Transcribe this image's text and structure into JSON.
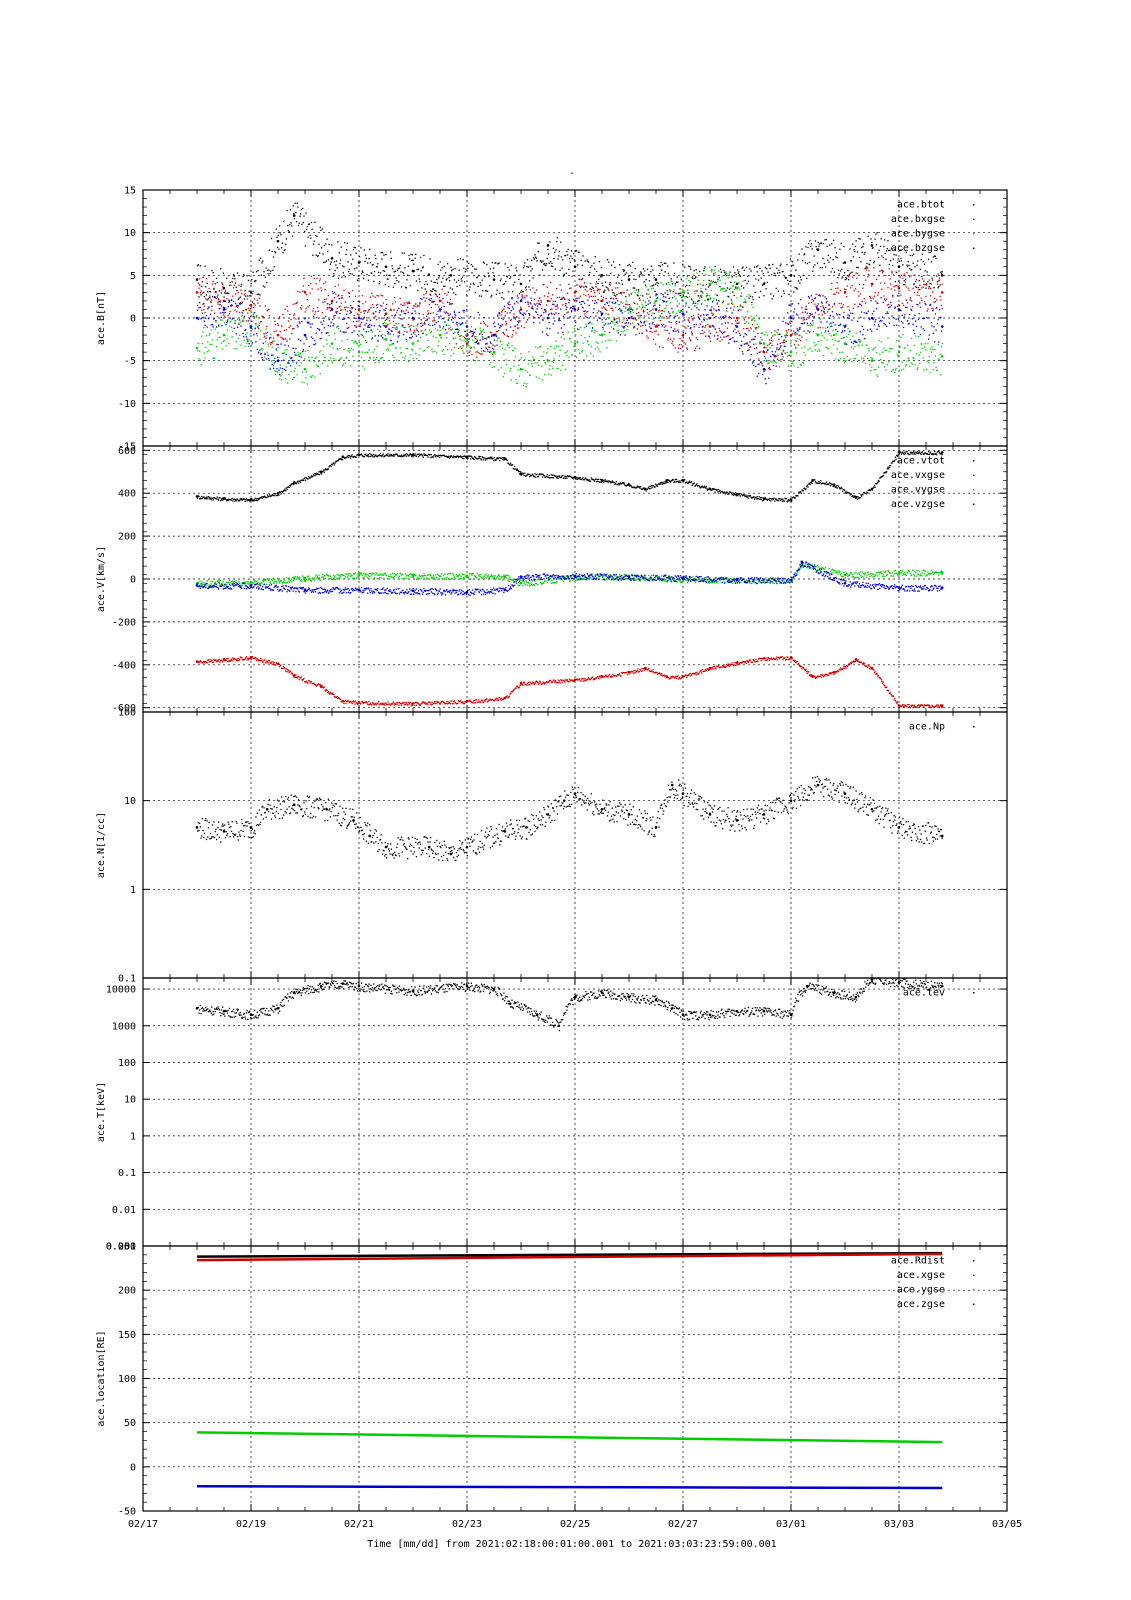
{
  "figure": {
    "title": "-"
  },
  "colors": {
    "black": "#000000",
    "red": "#cc0000",
    "green": "#00cc00",
    "blue": "#0000cc"
  },
  "footer": {
    "xlabel": "Time [mm/dd]  from 2021:02:18:00:01:00.001  to  2021:03:03:23:59:00.001",
    "xticks": [
      "02/17",
      "02/19",
      "02/21",
      "02/23",
      "02/25",
      "02/27",
      "03/01",
      "03/03",
      "03/05"
    ]
  },
  "chart_data": [
    {
      "type": "scatter",
      "ylabel": "ace.B[nT]",
      "ylim": [
        -15,
        15
      ],
      "yscale": "linear",
      "yticks": [
        "15",
        "10",
        "5",
        "0",
        "-5",
        "-10",
        "-15"
      ],
      "grid": true,
      "legend_position": "top-right",
      "x_unit": "days since 02/17",
      "series": [
        {
          "name": "ace.btot",
          "color": "#000000",
          "x": [
            1.0,
            1.5,
            2.0,
            2.5,
            2.8,
            3.5,
            4.0,
            4.5,
            5.0,
            5.7,
            6.5,
            7.0,
            7.5,
            8.0,
            8.5,
            9.0,
            9.5,
            10.5,
            11.0,
            11.5,
            12.0,
            12.5,
            13.0,
            13.5,
            14.0,
            14.8
          ],
          "y": [
            4.5,
            3.5,
            3.0,
            9.0,
            12.0,
            7.0,
            6.5,
            6.0,
            5.5,
            5.0,
            4.5,
            4.0,
            8.5,
            6.0,
            5.0,
            4.5,
            4.5,
            4.0,
            4.0,
            4.0,
            5.0,
            8.0,
            6.5,
            8.5,
            6.0,
            5.0
          ]
        },
        {
          "name": "ace.bxgse",
          "color": "#cc0000",
          "x": [
            1.0,
            1.5,
            2.0,
            2.5,
            3.0,
            3.5,
            4.0,
            4.5,
            5.0,
            5.5,
            6.0,
            6.5,
            7.0,
            7.5,
            8.0,
            8.5,
            9.0,
            9.5,
            10.0,
            10.5,
            11.0,
            11.5,
            12.0,
            12.5,
            13.0,
            13.5,
            14.0,
            14.8
          ],
          "y": [
            3.0,
            2.0,
            1.5,
            -2.0,
            3.0,
            2.0,
            1.0,
            0.5,
            0.0,
            2.0,
            -3.0,
            -2.0,
            1.0,
            2.0,
            3.0,
            2.0,
            1.0,
            -1.0,
            -2.0,
            -1.0,
            0.0,
            -4.0,
            -2.0,
            1.0,
            3.0,
            4.0,
            3.5,
            3.0
          ]
        },
        {
          "name": "ace.bygse",
          "color": "#00cc00",
          "x": [
            1.0,
            1.5,
            2.0,
            2.5,
            3.0,
            3.5,
            4.0,
            4.5,
            5.0,
            5.5,
            6.0,
            6.5,
            7.0,
            7.5,
            8.0,
            8.5,
            9.0,
            9.5,
            10.0,
            10.5,
            11.0,
            11.5,
            12.0,
            12.5,
            13.0,
            13.5,
            14.0,
            14.8
          ],
          "y": [
            -3.5,
            -2.0,
            -1.0,
            -5.0,
            -6.0,
            -3.0,
            -4.0,
            -2.5,
            -3.0,
            -2.0,
            -2.5,
            -4.0,
            -6.0,
            -5.0,
            -3.0,
            -2.0,
            1.0,
            2.0,
            3.0,
            4.0,
            3.5,
            -3.0,
            -4.0,
            -2.0,
            -3.0,
            -5.0,
            -4.0,
            -4.5
          ]
        },
        {
          "name": "ace.bzgse",
          "color": "#0000cc",
          "x": [
            1.0,
            1.5,
            2.0,
            2.5,
            3.0,
            3.5,
            4.0,
            4.5,
            5.0,
            5.5,
            6.0,
            6.5,
            7.0,
            7.5,
            8.0,
            8.5,
            9.0,
            9.5,
            10.0,
            10.5,
            11.0,
            11.5,
            12.0,
            12.5,
            13.0,
            13.5,
            14.0,
            14.8
          ],
          "y": [
            0.0,
            1.0,
            -1.0,
            -5.0,
            -2.0,
            1.0,
            0.0,
            -1.0,
            0.0,
            1.0,
            -1.0,
            -2.0,
            2.0,
            0.0,
            1.0,
            0.5,
            0.0,
            1.0,
            0.5,
            0.0,
            -1.0,
            -6.0,
            0.0,
            1.0,
            -1.0,
            0.0,
            1.0,
            -1.0
          ]
        }
      ]
    },
    {
      "type": "scatter",
      "ylabel": "ace.V[km/s]",
      "ylim": [
        -620,
        620
      ],
      "yscale": "linear",
      "yticks": [
        "600",
        "400",
        "200",
        "0",
        "-200",
        "-400",
        "-600"
      ],
      "grid": true,
      "legend_position": "top-right",
      "x_unit": "days since 02/17",
      "series": [
        {
          "name": "ace.vtot",
          "color": "#000000",
          "x": [
            1.0,
            1.5,
            2.0,
            2.5,
            2.8,
            3.3,
            3.7,
            4.0,
            5.0,
            6.0,
            6.7,
            7.0,
            8.0,
            8.5,
            9.0,
            9.3,
            9.7,
            10.0,
            10.5,
            11.0,
            11.5,
            12.0,
            12.4,
            12.8,
            13.2,
            13.5,
            14.0,
            14.8
          ],
          "y": [
            385,
            375,
            370,
            400,
            450,
            500,
            570,
            580,
            580,
            570,
            560,
            490,
            475,
            460,
            440,
            420,
            460,
            460,
            420,
            395,
            375,
            370,
            460,
            440,
            380,
            420,
            590,
            590
          ]
        },
        {
          "name": "ace.vxgse",
          "color": "#cc0000",
          "x": [
            1.0,
            1.5,
            2.0,
            2.5,
            2.8,
            3.3,
            3.7,
            4.0,
            5.0,
            6.0,
            6.7,
            7.0,
            8.0,
            8.5,
            9.0,
            9.3,
            9.7,
            10.0,
            10.5,
            11.0,
            11.5,
            12.0,
            12.4,
            12.8,
            13.2,
            13.5,
            14.0,
            14.8
          ],
          "y": [
            -385,
            -375,
            -365,
            -395,
            -450,
            -500,
            -570,
            -575,
            -580,
            -570,
            -555,
            -485,
            -470,
            -455,
            -435,
            -415,
            -455,
            -455,
            -415,
            -390,
            -370,
            -365,
            -455,
            -435,
            -375,
            -415,
            -590,
            -590
          ]
        },
        {
          "name": "ace.vygse",
          "color": "#00cc00",
          "x": [
            1.0,
            2.0,
            3.0,
            4.0,
            5.0,
            6.0,
            6.7,
            7.0,
            8.0,
            9.0,
            10.0,
            11.0,
            12.0,
            12.2,
            13.0,
            14.0,
            14.8
          ],
          "y": [
            -20,
            -15,
            5,
            20,
            15,
            15,
            10,
            -20,
            10,
            10,
            0,
            -5,
            -5,
            70,
            20,
            30,
            30
          ]
        },
        {
          "name": "ace.vzgse",
          "color": "#0000cc",
          "x": [
            1.0,
            2.0,
            3.0,
            4.0,
            5.0,
            6.0,
            6.7,
            7.0,
            8.0,
            9.0,
            10.0,
            11.0,
            12.0,
            12.2,
            13.0,
            14.0,
            14.8
          ],
          "y": [
            -30,
            -30,
            -50,
            -50,
            -55,
            -60,
            -50,
            10,
            15,
            10,
            5,
            -5,
            -5,
            80,
            -20,
            -40,
            -40
          ]
        }
      ]
    },
    {
      "type": "scatter",
      "ylabel": "ace.N[1/cc]",
      "ylim": [
        0.1,
        100
      ],
      "yscale": "log",
      "yticks": [
        "100",
        "10",
        "1",
        "0.1"
      ],
      "grid": true,
      "legend_position": "top-right",
      "x_unit": "days since 02/17",
      "series": [
        {
          "name": "ace.Np",
          "color": "#000000",
          "x": [
            1.0,
            1.5,
            2.0,
            2.3,
            2.8,
            3.4,
            3.9,
            4.2,
            4.5,
            5.3,
            5.7,
            6.0,
            6.7,
            7.1,
            7.5,
            7.8,
            8.0,
            8.5,
            9.0,
            9.5,
            9.8,
            10.0,
            10.5,
            11.0,
            11.5,
            12.0,
            12.5,
            13.0,
            13.5,
            14.0,
            14.8
          ],
          "y": [
            5,
            4.5,
            5,
            8,
            9,
            8,
            6,
            4,
            3,
            3,
            2.5,
            3,
            4.5,
            5,
            7,
            10,
            12,
            8,
            7,
            5,
            15,
            12,
            7,
            6,
            7,
            10,
            15,
            12,
            8,
            5,
            4
          ]
        }
      ]
    },
    {
      "type": "scatter",
      "ylabel": "ace.T[keV]",
      "ylim": [
        0.001,
        20000
      ],
      "yscale": "log",
      "yticks": [
        "10000",
        "1000",
        "100",
        "10",
        "1",
        "0.1",
        "0.01",
        "0.001"
      ],
      "grid": true,
      "legend_position": "top-right",
      "x_unit": "days since 02/17",
      "series": [
        {
          "name": "ace.tev",
          "color": "#000000",
          "x": [
            1.0,
            1.5,
            2.0,
            2.5,
            2.8,
            3.3,
            3.7,
            4.0,
            5.0,
            6.0,
            6.5,
            6.8,
            7.3,
            7.7,
            8.0,
            8.5,
            9.0,
            9.5,
            9.8,
            10.0,
            10.5,
            11.0,
            11.5,
            12.0,
            12.3,
            12.8,
            13.2,
            13.5,
            14.0,
            14.8
          ],
          "y": [
            3000,
            2500,
            2000,
            3000,
            8000,
            12000,
            14000,
            12000,
            9000,
            12000,
            10000,
            4000,
            2000,
            1000,
            6000,
            8000,
            6000,
            5000,
            3000,
            2000,
            2000,
            2500,
            2500,
            2000,
            12000,
            8000,
            6000,
            18000,
            15000,
            12000
          ]
        }
      ]
    },
    {
      "type": "line",
      "ylabel": "ace.location[RE]",
      "ylim": [
        -50,
        250
      ],
      "yscale": "linear",
      "yticks": [
        "250",
        "200",
        "150",
        "100",
        "50",
        "0",
        "-50"
      ],
      "top_left_label": "0.001",
      "grid": true,
      "legend_position": "top-right",
      "x_unit": "days since 02/17",
      "series": [
        {
          "name": "ace.Rdist",
          "color": "#000000",
          "x": [
            1.0,
            14.8
          ],
          "y": [
            238,
            242
          ]
        },
        {
          "name": "ace.xgse",
          "color": "#cc0000",
          "x": [
            1.0,
            14.8
          ],
          "y": [
            234,
            241
          ]
        },
        {
          "name": "ace.ygse",
          "color": "#00cc00",
          "x": [
            1.0,
            14.8
          ],
          "y": [
            39,
            28
          ]
        },
        {
          "name": "ace.zgse",
          "color": "#0000cc",
          "x": [
            1.0,
            14.8
          ],
          "y": [
            -22,
            -24
          ]
        }
      ]
    }
  ]
}
